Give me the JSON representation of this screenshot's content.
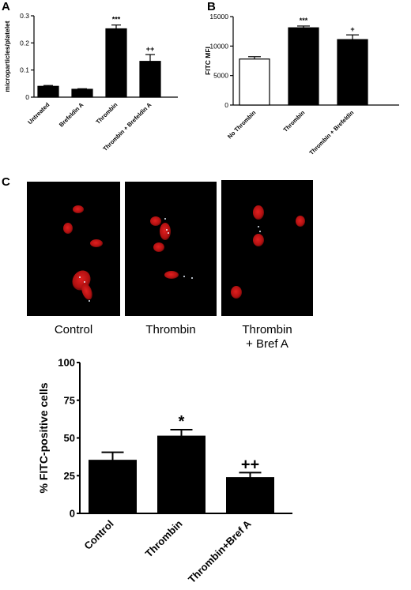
{
  "panels": {
    "a": "A",
    "b": "B",
    "c": "C"
  },
  "chart_data": [
    {
      "type": "bar",
      "panel": "A",
      "ylabel": "microparticles/platelet",
      "ylim": [
        0,
        0.3
      ],
      "yticks": [
        0,
        0.1,
        0.2,
        0.3
      ],
      "ytick_labels": [
        "0",
        "0.1",
        "0.2",
        "0.3"
      ],
      "categories": [
        "Untreated",
        "Brefeldin A",
        "Thrombin",
        "Thrombin + Brefeldin A"
      ],
      "values": [
        0.04,
        0.029,
        0.252,
        0.132
      ],
      "errors": [
        0.003,
        0.002,
        0.014,
        0.025
      ],
      "fills": [
        "#000000",
        "#000000",
        "#000000",
        "#000000"
      ],
      "annotations": [
        "",
        "",
        "***",
        "++"
      ]
    },
    {
      "type": "bar",
      "panel": "B",
      "ylabel": "FITC MFI",
      "ylim": [
        0,
        15000
      ],
      "yticks": [
        0,
        5000,
        10000,
        15000
      ],
      "ytick_labels": [
        "0",
        "5000",
        "10000",
        "15000"
      ],
      "categories": [
        "No Thrombin",
        "Thrombin",
        "Thrombin + Brefeldin"
      ],
      "values": [
        7800,
        13100,
        11100
      ],
      "errors": [
        400,
        300,
        800
      ],
      "fills": [
        "#ffffff",
        "#000000",
        "#000000"
      ],
      "annotations": [
        "",
        "***",
        "+"
      ]
    },
    {
      "type": "bar",
      "panel": "C",
      "ylabel": "% FITC-positive cells",
      "ylim": [
        0,
        100
      ],
      "yticks": [
        0,
        25,
        50,
        75,
        100
      ],
      "ytick_labels": [
        "0",
        "25",
        "50",
        "75",
        "100"
      ],
      "categories": [
        "Control",
        "Thrombin",
        "Thrombin+Bref A"
      ],
      "values": [
        35,
        51,
        23.5
      ],
      "errors": [
        5.5,
        4.5,
        3.5
      ],
      "fills": [
        "#000000",
        "#000000",
        "#000000"
      ],
      "annotations": [
        "",
        "*",
        "++"
      ]
    }
  ],
  "micrographs": [
    {
      "caption_line1": "Control",
      "caption_line2": ""
    },
    {
      "caption_line1": "Thrombin",
      "caption_line2": ""
    },
    {
      "caption_line1": "Thrombin",
      "caption_line2": "+ Bref A"
    }
  ]
}
